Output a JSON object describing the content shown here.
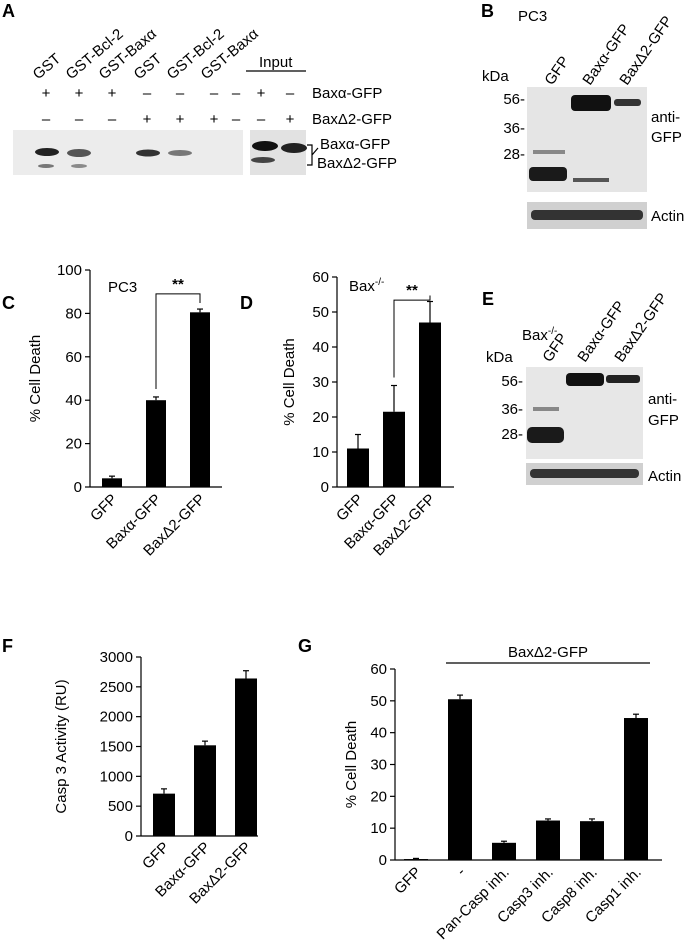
{
  "panels": {
    "A": {
      "letter": "A",
      "lanes": [
        "GST",
        "GST-Bcl-2",
        "GST-Baxα",
        "GST",
        "GST-Bcl-2",
        "GST-Baxα"
      ],
      "input_label": "Input",
      "row1_label": "Baxα-GFP",
      "row2_label": "BaxΔ2-GFP",
      "row1_signs": [
        "+",
        "+",
        "+",
        "–",
        "–",
        "–",
        "–",
        "+",
        "–"
      ],
      "row2_signs": [
        "–",
        "–",
        "–",
        "+",
        "+",
        "+",
        "–",
        "–",
        "+"
      ],
      "band1_label": "Baxα-GFP",
      "band2_label": "BaxΔ2-GFP"
    },
    "B": {
      "letter": "B",
      "cell_line": "PC3",
      "kda_label": "kDa",
      "lanes": [
        "GFP",
        "Baxα-GFP",
        "BaxΔ2-GFP"
      ],
      "markers": [
        "56-",
        "36-",
        "28-"
      ],
      "antibody_line1": "anti-",
      "antibody_line2": "GFP",
      "loading_label": "Actin"
    },
    "E": {
      "letter": "E",
      "cell_line": "Bax",
      "cell_line_sup": "-/-",
      "kda_label": "kDa",
      "lanes": [
        "GFP",
        "Baxα-GFP",
        "BaxΔ2-GFP"
      ],
      "markers": [
        "56-",
        "36-",
        "28-"
      ],
      "antibody_line1": "anti-",
      "antibody_line2": "GFP",
      "loading_label": "Actin"
    }
  },
  "chart_data": [
    {
      "id": "C",
      "letter": "C",
      "type": "bar",
      "inset_label": "PC3",
      "ylabel": "% Cell Death",
      "categories": [
        "GFP",
        "Baxα-GFP",
        "BaxΔ2-GFP"
      ],
      "values": [
        4,
        40,
        80.5
      ],
      "errors": [
        1,
        1.5,
        1.5
      ],
      "ylim": [
        0,
        100
      ],
      "yticks": [
        0,
        20,
        40,
        60,
        80,
        100
      ],
      "significance": {
        "label": "**",
        "from": 1,
        "to": 2
      }
    },
    {
      "id": "D",
      "letter": "D",
      "type": "bar",
      "inset_label": "Bax",
      "inset_sup": "-/-",
      "ylabel": "% Cell Death",
      "categories": [
        "GFP",
        "Baxα-GFP",
        "BaxΔ2-GFP"
      ],
      "values": [
        11,
        21.5,
        47
      ],
      "errors": [
        4,
        7.5,
        6
      ],
      "ylim": [
        0,
        60
      ],
      "yticks": [
        0,
        10,
        20,
        30,
        40,
        50,
        60
      ],
      "significance": {
        "label": "**",
        "from": 1,
        "to": 2
      }
    },
    {
      "id": "F",
      "letter": "F",
      "type": "bar",
      "ylabel": "Casp 3 Activity (RU)",
      "categories": [
        "GFP",
        "Baxα-GFP",
        "BaxΔ2-GFP"
      ],
      "values": [
        710,
        1520,
        2640
      ],
      "errors": [
        80,
        70,
        130
      ],
      "ylim": [
        0,
        3000
      ],
      "yticks": [
        0,
        500,
        1000,
        1500,
        2000,
        2500,
        3000
      ]
    },
    {
      "id": "G",
      "letter": "G",
      "type": "bar",
      "ylabel": "% Cell Death",
      "group_label": "BaxΔ2-GFP",
      "group_from": 1,
      "group_to": 5,
      "categories": [
        "GFP",
        "-",
        "Pan-Casp inh.",
        "Casp3 inh.",
        "Casp8 inh.",
        "Casp1 inh."
      ],
      "values": [
        0.3,
        50.5,
        5.4,
        12.4,
        12.2,
        44.6
      ],
      "errors": [
        0.2,
        1.3,
        0.5,
        0.5,
        0.7,
        1.2
      ],
      "ylim": [
        0,
        60
      ],
      "yticks": [
        0,
        10,
        20,
        30,
        40,
        50,
        60
      ]
    }
  ]
}
